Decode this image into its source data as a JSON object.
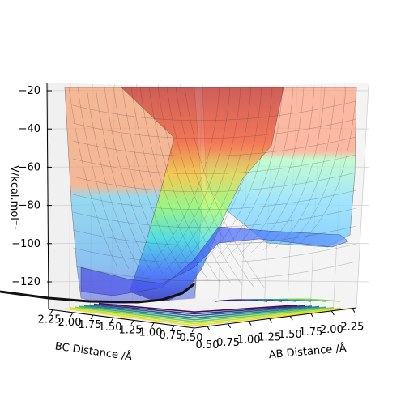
{
  "chart_data": {
    "type": "surface",
    "title": "",
    "zlabel": "V/kcal.mol⁻¹",
    "xlabel": "AB Distance /Å",
    "ylabel": "BC Distance /Å",
    "z_ticks": [
      "−20",
      "−40",
      "−60",
      "−80",
      "−100",
      "−120"
    ],
    "z_tick_values": [
      -20,
      -40,
      -60,
      -80,
      -100,
      -120
    ],
    "x_ticks": [
      "0.50",
      "0.75",
      "1.00",
      "1.25",
      "1.50",
      "1.75",
      "2.00",
      "2.25"
    ],
    "x_tick_values": [
      0.5,
      0.75,
      1.0,
      1.25,
      1.5,
      1.75,
      2.0,
      2.25
    ],
    "y_ticks": [
      "2.25",
      "2.00",
      "1.75",
      "1.50",
      "1.25",
      "1.00",
      "0.75",
      "0.50"
    ],
    "y_tick_values": [
      2.25,
      2.0,
      1.75,
      1.5,
      1.25,
      1.0,
      0.75,
      0.5
    ],
    "zlim": [
      -130,
      -18
    ],
    "xlim": [
      0.5,
      2.3
    ],
    "ylim": [
      0.5,
      2.3
    ],
    "colormap_surface": "jet",
    "colormap_contour": "viridis",
    "description_points": {
      "reactant_valley_z": -70,
      "product_valley_z": -95,
      "saddle_z": -50,
      "min_z": -130,
      "max_z": -18
    }
  },
  "colors": {
    "surface_high": "#f08060",
    "surface_mid": "#80ff80",
    "surface_low": "#4060ff",
    "contour_yellow": "#f0e020",
    "contour_dark": "#3b1060"
  }
}
